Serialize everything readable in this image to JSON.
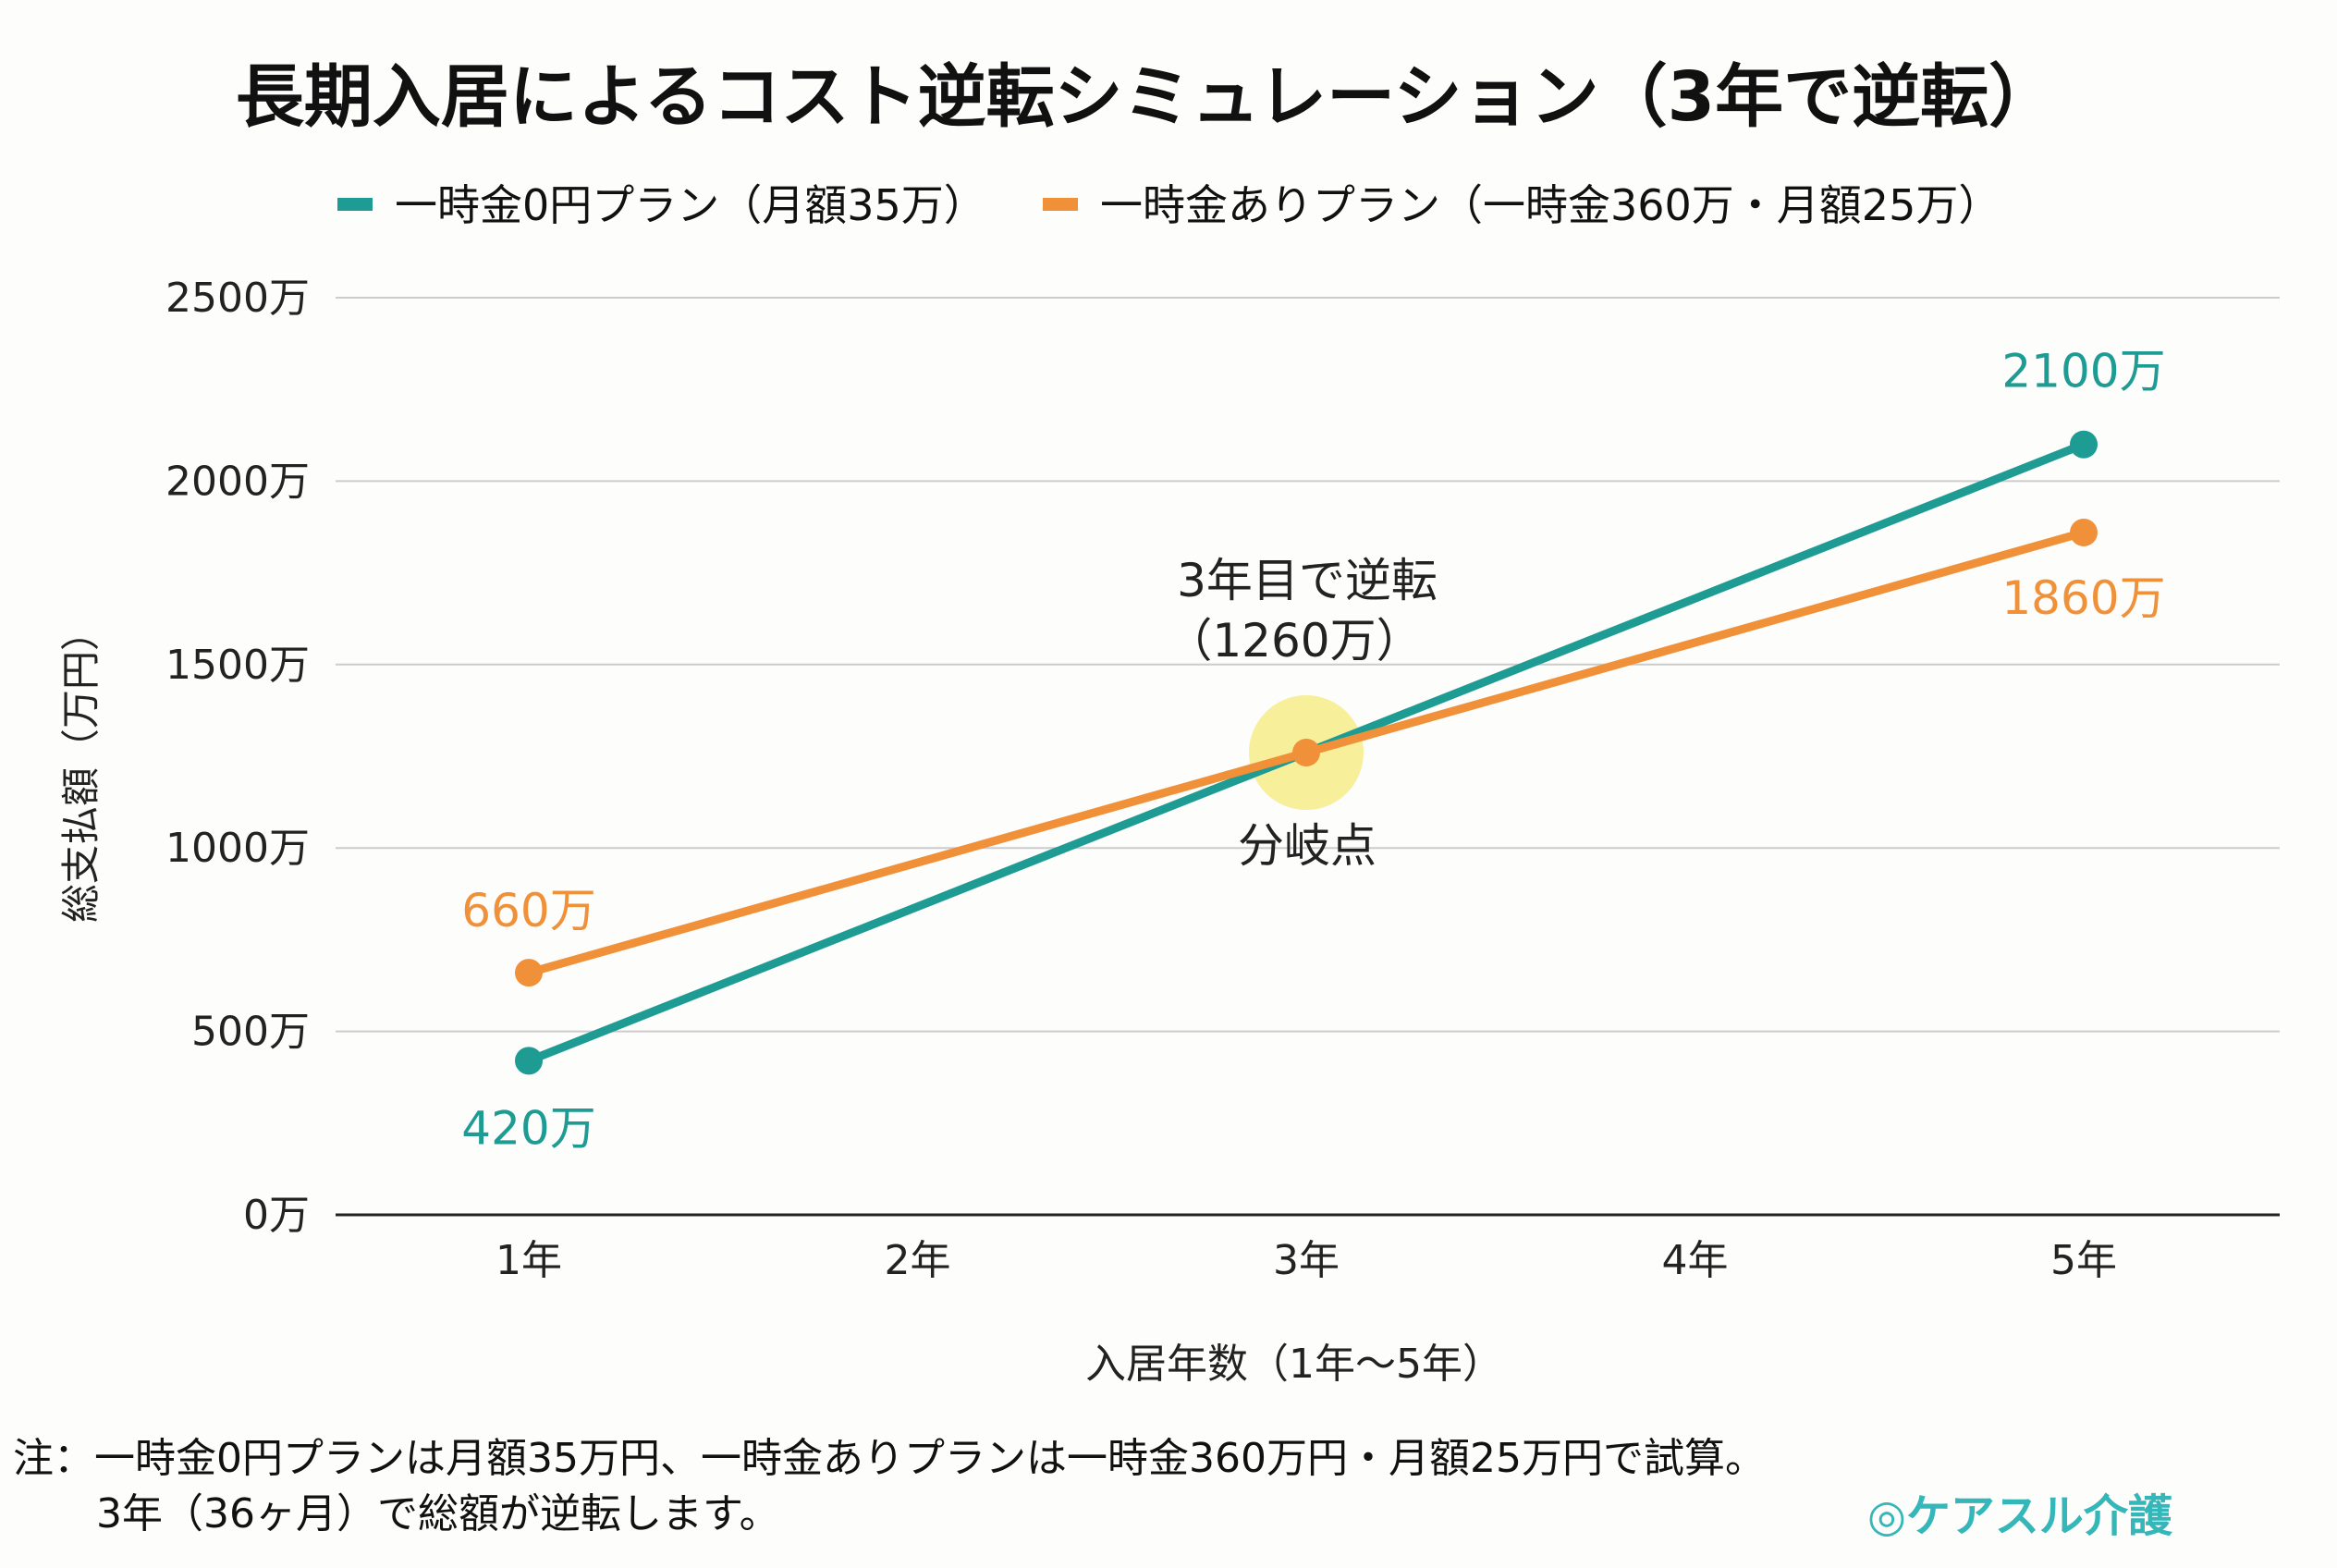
{
  "chart_data": {
    "type": "line",
    "title": "長期入居によるコスト逆転シミュレーション（3年で逆転）",
    "xlabel": "入居年数（1年〜5年）",
    "ylabel": "総支払額（万円）",
    "categories": [
      "1年",
      "2年",
      "3年",
      "4年",
      "5年"
    ],
    "yticks": [
      "0万",
      "500万",
      "1000万",
      "1500万",
      "2000万",
      "2500万"
    ],
    "ylim": [
      0,
      2500
    ],
    "grid": true,
    "legend_placement": "top",
    "series": [
      {
        "name": "一時金0円プラン（月額35万）",
        "color": "#1e9c94",
        "values": [
          420,
          840,
          1260,
          1680,
          2100
        ],
        "markers": [
          0,
          4
        ],
        "labels": {
          "0": "420万",
          "4": "2100万"
        }
      },
      {
        "name": "一時金ありプラン（一時金360万・月額25万）",
        "color": "#f0913a",
        "values": [
          660,
          960,
          1260,
          1560,
          1860
        ],
        "markers": [
          0,
          2,
          4
        ],
        "labels": {
          "0": "660万",
          "4": "1860万"
        }
      }
    ],
    "annotations": {
      "crossover_line1": "3年目で逆転",
      "crossover_line2": "（1260万）",
      "crossover_point": "分岐点",
      "highlight_color": "#f6e97a"
    }
  },
  "note": {
    "line1": "注：一時金0円プランは月額35万円、一時金ありプランは一時金360万円・月額25万円で試算。",
    "line2": "3年（36ヶ月）で総額が逆転します。"
  },
  "logo": {
    "text": "ケアスル介護"
  }
}
